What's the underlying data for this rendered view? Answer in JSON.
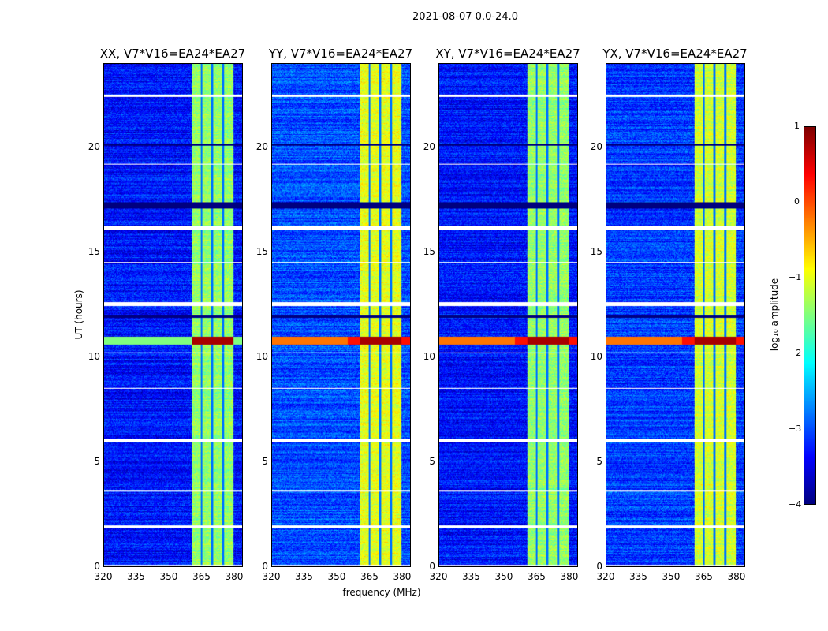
{
  "chart_data": {
    "type": "heatmap",
    "suptitle": "2021-08-07 0.0-24.0",
    "xlabel": "frequency (MHz)",
    "ylabel": "UT (hours)",
    "xlim": [
      320,
      384
    ],
    "ylim": [
      0,
      24
    ],
    "xticks": [
      "320",
      "335",
      "350",
      "365",
      "380"
    ],
    "xtick_values": [
      320,
      335,
      350,
      365,
      380
    ],
    "yticks": [
      "0",
      "5",
      "10",
      "15",
      "20"
    ],
    "ytick_values": [
      0,
      5,
      10,
      15,
      20
    ],
    "panels": [
      {
        "title": "XX, V7*V16=EA24*EA27",
        "band_level": -1.4,
        "base_level": -3.3
      },
      {
        "title": "YY, V7*V16=EA24*EA27",
        "band_level": -1.0,
        "base_level": -3.0
      },
      {
        "title": "XY, V7*V16=EA24*EA27",
        "band_level": -1.4,
        "base_level": -3.3
      },
      {
        "title": "YX, V7*V16=EA24*EA27",
        "band_level": -1.1,
        "base_level": -3.1
      }
    ],
    "bright_band_mhz": [
      360.5,
      380
    ],
    "subband_gaps_mhz": [
      365,
      370,
      375
    ],
    "flagged_hours": [
      [
        0.05,
        0.1
      ],
      [
        1.85,
        1.98
      ],
      [
        5.95,
        6.1
      ],
      [
        12.45,
        12.65
      ],
      [
        16.1,
        16.3
      ],
      [
        22.45,
        22.55
      ],
      [
        8.5,
        8.55
      ],
      [
        10.2,
        10.25
      ],
      [
        14.5,
        14.55
      ],
      [
        19.2,
        19.25
      ],
      [
        3.6,
        3.65
      ]
    ],
    "dark_rows_hours": [
      [
        17.1,
        17.4
      ],
      [
        20.1,
        20.2
      ],
      [
        11.9,
        12.0
      ]
    ],
    "rfi_burst_hours": [
      10.6,
      11.0
    ],
    "colorbar": {
      "label": "log₁₀ amplitude",
      "ticks": [
        "1",
        "0",
        "−1",
        "−2",
        "−3",
        "−4"
      ],
      "tick_values": [
        1,
        0,
        -1,
        -2,
        -3,
        -4
      ],
      "range": [
        -4,
        1
      ],
      "colormap": "jet"
    }
  }
}
